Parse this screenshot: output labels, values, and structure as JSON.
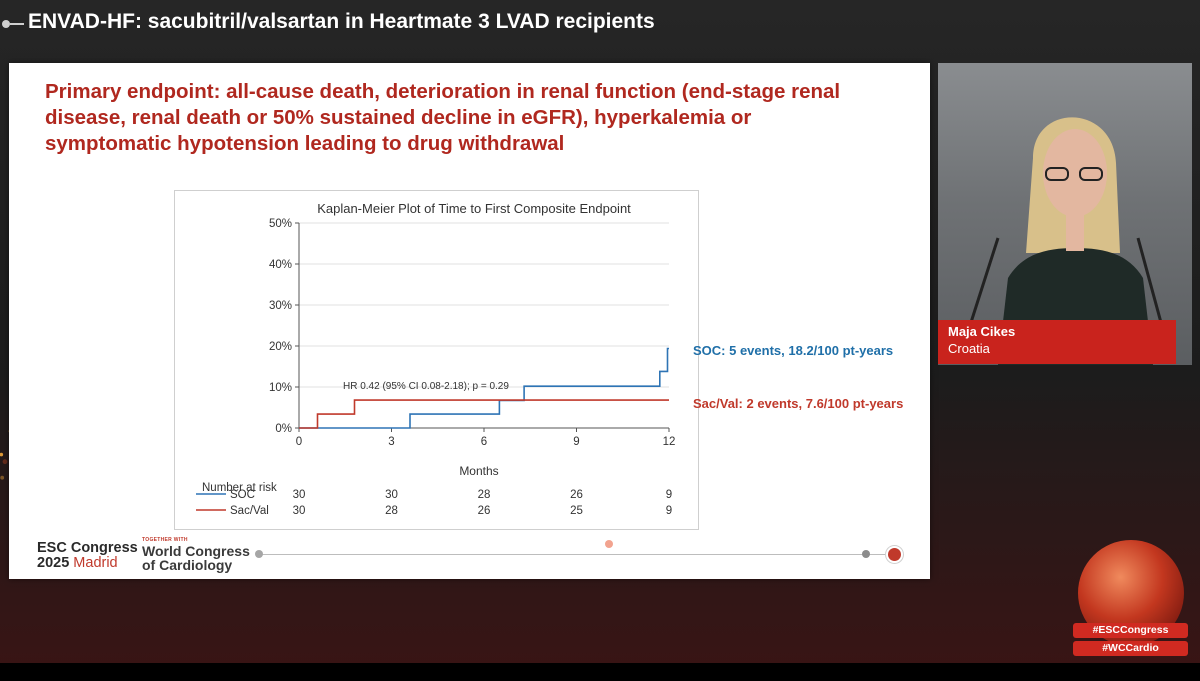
{
  "header": {
    "title": "ENVAD-HF: sacubitril/valsartan in Heartmate 3 LVAD recipients"
  },
  "slide": {
    "endpoint_text": "Primary endpoint: all-cause death, deterioration in renal function (end-stage renal disease, renal death or 50% sustained decline in eGFR), hyperkalemia or symptomatic hypotension leading to drug withdrawal",
    "soc_annotation": "SOC: 5 events, 18.2/100 pt-years",
    "sacval_annotation": "Sac/Val: 2 events, 7.6/100 pt-years"
  },
  "chart_data": {
    "type": "line",
    "title": "Kaplan-Meier Plot of Time to First Composite Endpoint",
    "xlabel": "Months",
    "ylabel": "",
    "xlim": [
      0,
      12
    ],
    "ylim": [
      0,
      50
    ],
    "x_ticks": [
      0,
      3,
      6,
      9,
      12
    ],
    "y_ticks": [
      0,
      10,
      20,
      30,
      40,
      50
    ],
    "y_tick_labels": [
      "0%",
      "10%",
      "20%",
      "30%",
      "40%",
      "50%"
    ],
    "grid": true,
    "annotation": "HR 0.42 (95% CI 0.08-2.18); p = 0.29",
    "series": [
      {
        "name": "SOC",
        "color": "#2e74b5",
        "steps": [
          [
            0,
            0
          ],
          [
            3.6,
            0
          ],
          [
            3.6,
            3.4
          ],
          [
            6.5,
            3.4
          ],
          [
            6.5,
            6.7
          ],
          [
            7.3,
            6.7
          ],
          [
            7.3,
            10.2
          ],
          [
            11.7,
            10.2
          ],
          [
            11.7,
            13.8
          ],
          [
            11.95,
            13.8
          ],
          [
            11.95,
            19.4
          ],
          [
            12,
            19.4
          ]
        ]
      },
      {
        "name": "Sac/Val",
        "color": "#c0392b",
        "steps": [
          [
            0,
            0
          ],
          [
            0.6,
            0
          ],
          [
            0.6,
            3.4
          ],
          [
            1.8,
            3.4
          ],
          [
            1.8,
            6.8
          ],
          [
            12,
            6.8
          ]
        ]
      }
    ],
    "risk_table": {
      "title": "Number at risk",
      "rows": [
        {
          "label": "SOC",
          "values": [
            "30",
            "30",
            "28",
            "26",
            "9"
          ]
        },
        {
          "label": "Sac/Val",
          "values": [
            "30",
            "28",
            "26",
            "25",
            "9"
          ]
        }
      ]
    }
  },
  "footer": {
    "esc_line1": "ESC Congress",
    "esc_year": "2025",
    "esc_city": "Madrid",
    "wcc_small": "TOGETHER WITH",
    "wcc_line1": "World Congress",
    "wcc_line2": "of Cardiology"
  },
  "speaker": {
    "name": "Maja Cikes",
    "country": "Croatia"
  },
  "hashtags": [
    "#ESCCongress",
    "#WCCardio"
  ]
}
